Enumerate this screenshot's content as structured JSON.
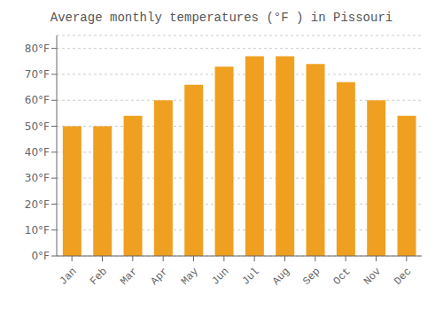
{
  "chart_data": {
    "type": "bar",
    "title": "Average monthly temperatures (°F ) in Pissouri",
    "categories": [
      "Jan",
      "Feb",
      "Mar",
      "Apr",
      "May",
      "Jun",
      "Jul",
      "Aug",
      "Sep",
      "Oct",
      "Nov",
      "Dec"
    ],
    "values": [
      50,
      50,
      54,
      60,
      66,
      73,
      77,
      77,
      74,
      67,
      60,
      54
    ],
    "color": "#F0A020",
    "ylim": [
      0,
      85
    ],
    "yticks": [
      {
        "value": 0,
        "label": "0°F"
      },
      {
        "value": 10,
        "label": "10°F"
      },
      {
        "value": 20,
        "label": "20°F"
      },
      {
        "value": 30,
        "label": "30°F"
      },
      {
        "value": 40,
        "label": "40°F"
      },
      {
        "value": 50,
        "label": "50°F"
      },
      {
        "value": 60,
        "label": "60°F"
      },
      {
        "value": 70,
        "label": "70°F"
      },
      {
        "value": 80,
        "label": "80°F"
      }
    ],
    "grid": true
  }
}
